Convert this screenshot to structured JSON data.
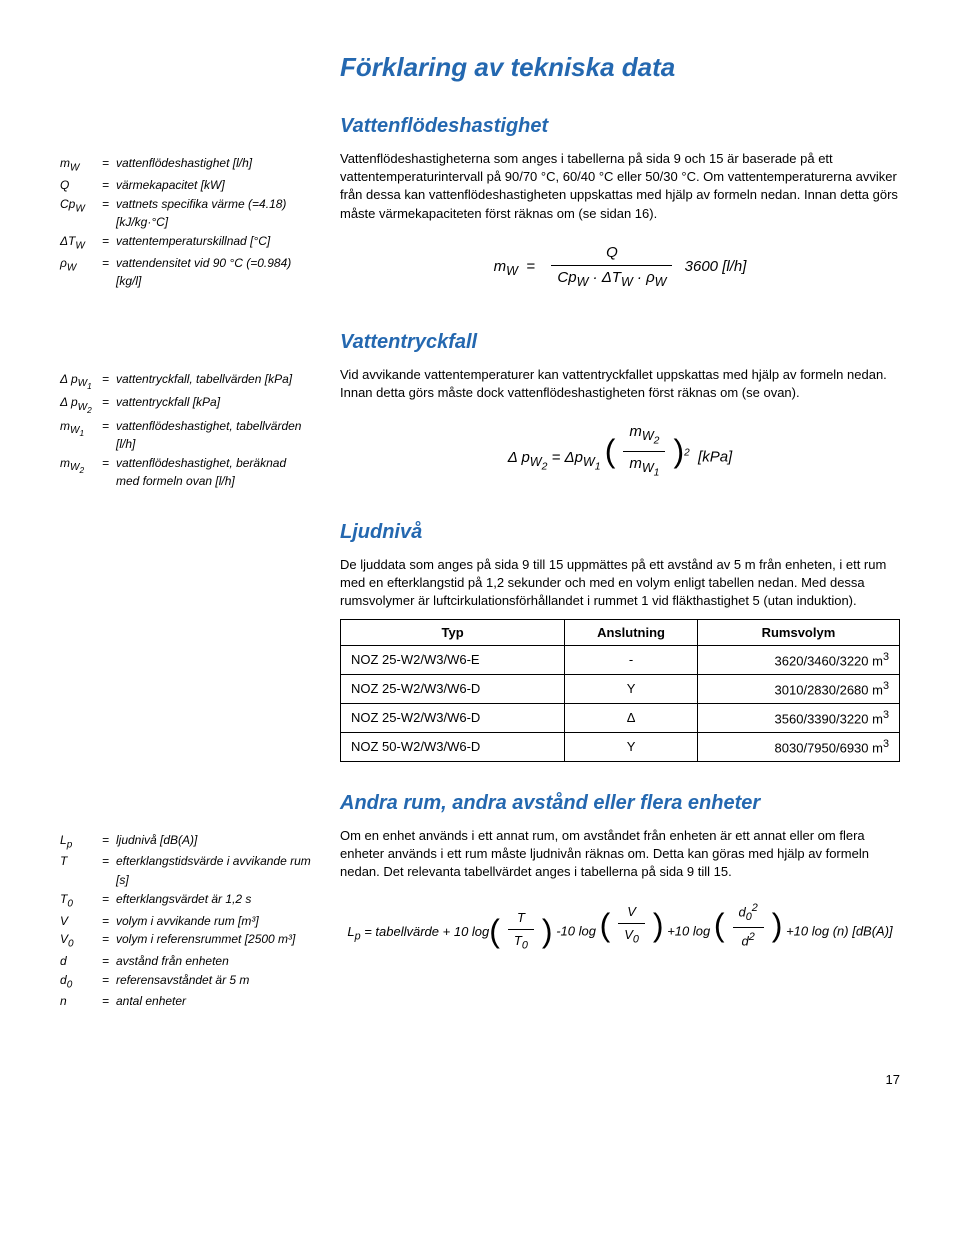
{
  "page": {
    "title": "Förklaring av tekniska data",
    "number": "17"
  },
  "sections": {
    "flow": {
      "title": "Vattenflödeshastighet",
      "defs": [
        {
          "sym": "m<sub>W</sub>",
          "desc": "vattenflödeshastighet [l/h]"
        },
        {
          "sym": "Q",
          "desc": "värmekapacitet [kW]"
        },
        {
          "sym": "Cp<sub>W</sub>",
          "desc": "vattnets specifika värme (=4.18) [kJ/kg·°C]"
        },
        {
          "sym": "ΔT<sub>W</sub>",
          "desc": "vattentemperaturskillnad [°C]"
        },
        {
          "sym": "ρ<sub>W</sub>",
          "desc": "vattendensitet vid 90 °C (=0.984) [kg/l]"
        }
      ],
      "body": "Vattenflödeshastigheterna som anges i tabellerna på sida 9 och 15 är baserade på ett vattentemperaturintervall på 90/70 °C, 60/40 °C eller 50/30 °C. Om vattentemperaturerna avviker från dessa kan vattenflödeshastigheten uppskattas med hjälp av formeln nedan. Innan detta görs måste värmekapaciteten först räknas om (se sidan 16).",
      "formula": {
        "lhs": "m<sub>W</sub>",
        "num": "Q",
        "den": "Cp<sub>W</sub> · ΔT<sub>W</sub> · ρ<sub>W</sub>",
        "unit": "3600 [l/h]"
      }
    },
    "pressure": {
      "title": "Vattentryckfall",
      "defs": [
        {
          "sym": "Δ p<sub>W<sub>1</sub></sub>",
          "desc": "vattentryckfall, tabellvärden [kPa]"
        },
        {
          "sym": "Δ p<sub>W<sub>2</sub></sub>",
          "desc": "vattentryckfall [kPa]"
        },
        {
          "sym": "m<sub>W<sub>1</sub></sub>",
          "desc": "vattenflödeshastighet, tabellvärden [l/h]"
        },
        {
          "sym": "m<sub>W<sub>2</sub></sub>",
          "desc": "vattenflödeshastighet, beräknad med formeln ovan [l/h]"
        }
      ],
      "body": "Vid avvikande vattentemperaturer kan vattentryckfallet uppskattas med hjälp av formeln nedan. Innan detta görs måste dock vattenflödeshastigheten först räknas om (se ovan).",
      "formula": {
        "lhs": "Δ p<sub>W<sub>2</sub></sub> = Δp<sub>W<sub>1</sub></sub>",
        "num": "m<sub>W<sub>2</sub></sub>",
        "den": "m<sub>W<sub>1</sub></sub>",
        "exp": "2",
        "unit": "[kPa]"
      }
    },
    "sound": {
      "title": "Ljudnivå",
      "body": "De ljuddata som anges på sida 9 till 15 uppmättes på ett avstånd av 5 m från enheten, i ett rum med en efterklangstid på 1,2 sekunder och med en volym enligt tabellen nedan. Med dessa rumsvolymer är luftcirkulationsförhållandet i rummet 1 vid fläkthastighet 5 (utan induktion).",
      "table": {
        "headers": [
          "Typ",
          "Anslutning",
          "Rumsvolym"
        ],
        "rows": [
          [
            "NOZ 25-W2/W3/W6-E",
            "-",
            "3620/3460/3220 m³"
          ],
          [
            "NOZ 25-W2/W3/W6-D",
            "Y",
            "3010/2830/2680 m³"
          ],
          [
            "NOZ 25-W2/W3/W6-D",
            "Δ",
            "3560/3390/3220 m³"
          ],
          [
            "NOZ 50-W2/W3/W6-D",
            "Y",
            "8030/7950/6930 m³"
          ]
        ]
      }
    },
    "other": {
      "title": "Andra rum, andra avstånd eller flera enheter",
      "defs": [
        {
          "sym": "L<sub>p</sub>",
          "desc": "ljudnivå [dB(A)]"
        },
        {
          "sym": "T",
          "desc": "efterklangs­tidsvärde i avvikande rum [s]"
        },
        {
          "sym": "T<sub>0</sub>",
          "desc": "efterklangs­värdet är 1,2 s"
        },
        {
          "sym": "V",
          "desc": "volym i avvikande rum [m³]"
        },
        {
          "sym": "V<sub>0</sub>",
          "desc": "volym i referens­rummet [2500 m³]"
        },
        {
          "sym": "d",
          "desc": "avstånd från enheten"
        },
        {
          "sym": "d<sub>0</sub>",
          "desc": "referens­avståndet är 5 m"
        },
        {
          "sym": "n",
          "desc": "antal enheter"
        }
      ],
      "body": "Om en enhet används i ett annat rum, om avståndet från enheten är ett annat eller om flera enheter används i ett rum måste ljudnivån räknas om. Detta kan göras med hjälp av formeln nedan. Det relevanta tabellvärdet anges i tabellerna på sida 9 till 15.",
      "formula": {
        "lhs": "L<sub>p</sub> = tabellvärde +",
        "t1": "10 log",
        "f1n": "T",
        "f1d": "T<sub>0</sub>",
        "t2": "-10 log",
        "f2n": "V",
        "f2d": "V<sub>0</sub>",
        "t3": "+10 log",
        "f3n": "d<sub>0</sub><sup>2</sup>",
        "f3d": "d<sup>2</sup>",
        "t4": "+10 log (n) [dB(A)]"
      }
    }
  }
}
